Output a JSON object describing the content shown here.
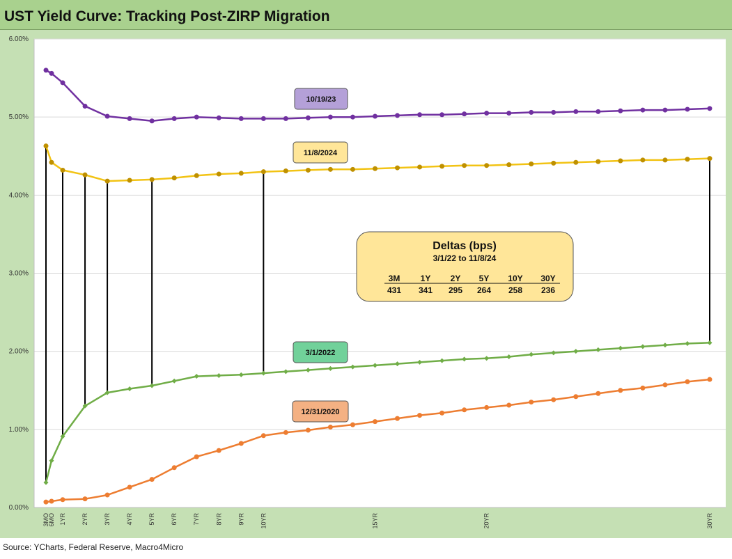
{
  "title": "UST Yield Curve: Tracking Post-ZIRP Migration",
  "source": "Source: YCharts, Federal Reserve, Macro4Micro",
  "chart_data": {
    "type": "line",
    "title": "UST Yield Curve: Tracking Post-ZIRP Migration",
    "ylim": [
      0,
      6
    ],
    "y_ticks": [
      "0.00%",
      "1.00%",
      "2.00%",
      "3.00%",
      "4.00%",
      "5.00%",
      "6.00%"
    ],
    "grid": true,
    "x_labels": [
      "3MO",
      "6MO",
      "1YR",
      "2YR",
      "3YR",
      "4YR",
      "5YR",
      "6YR",
      "7YR",
      "8YR",
      "9YR",
      "10YR",
      "",
      "",
      "",
      "",
      "15YR",
      "",
      "",
      "",
      "",
      "20YR",
      "",
      "",
      "",
      "",
      "",
      "",
      "",
      "",
      "",
      "30YR"
    ],
    "x_positions": [
      0.25,
      0.5,
      1,
      2,
      3,
      4,
      5,
      6,
      7,
      8,
      9,
      10,
      11,
      12,
      13,
      14,
      15,
      16,
      17,
      18,
      19,
      20,
      21,
      22,
      23,
      24,
      25,
      26,
      27,
      28,
      29,
      30
    ],
    "series": [
      {
        "name": "10/19/23",
        "color": "#7030a0",
        "label_bg": "#b4a0d8",
        "values": [
          5.6,
          5.56,
          5.44,
          5.14,
          5.01,
          4.98,
          4.95,
          4.98,
          5.0,
          4.99,
          4.98,
          4.98,
          4.98,
          4.99,
          5.0,
          5.0,
          5.01,
          5.02,
          5.03,
          5.03,
          5.04,
          5.05,
          5.05,
          5.06,
          5.06,
          5.07,
          5.07,
          5.08,
          5.09,
          5.09,
          5.1,
          5.11
        ]
      },
      {
        "name": "11/8/2024",
        "color": "#f2c314",
        "marker": "#bf9000",
        "label_bg": "#ffe699",
        "values": [
          4.63,
          4.42,
          4.32,
          4.26,
          4.18,
          4.19,
          4.2,
          4.22,
          4.25,
          4.27,
          4.28,
          4.3,
          4.31,
          4.32,
          4.33,
          4.33,
          4.34,
          4.35,
          4.36,
          4.37,
          4.38,
          4.38,
          4.39,
          4.4,
          4.41,
          4.42,
          4.43,
          4.44,
          4.45,
          4.45,
          4.46,
          4.47
        ]
      },
      {
        "name": "3/1/2022",
        "color": "#70ad47",
        "label_bg": "#71d19a",
        "values": [
          0.32,
          0.6,
          0.91,
          1.3,
          1.47,
          1.52,
          1.56,
          1.62,
          1.68,
          1.69,
          1.7,
          1.72,
          1.74,
          1.76,
          1.78,
          1.8,
          1.82,
          1.84,
          1.86,
          1.88,
          1.9,
          1.91,
          1.93,
          1.96,
          1.98,
          2.0,
          2.02,
          2.04,
          2.06,
          2.08,
          2.1,
          2.11
        ]
      },
      {
        "name": "12/31/2020",
        "color": "#ed7d31",
        "label_bg": "#f4b183",
        "values": [
          0.07,
          0.08,
          0.1,
          0.11,
          0.16,
          0.26,
          0.36,
          0.51,
          0.65,
          0.73,
          0.82,
          0.92,
          0.96,
          0.99,
          1.03,
          1.06,
          1.1,
          1.14,
          1.18,
          1.21,
          1.25,
          1.28,
          1.31,
          1.35,
          1.38,
          1.42,
          1.46,
          1.5,
          1.53,
          1.57,
          1.61,
          1.64
        ]
      }
    ],
    "delta_lines": [
      {
        "x": 0.25,
        "from": 0.32,
        "to": 4.63
      },
      {
        "x": 1,
        "from": 0.91,
        "to": 4.32
      },
      {
        "x": 2,
        "from": 1.3,
        "to": 4.26
      },
      {
        "x": 3,
        "from": 1.47,
        "to": 4.18
      },
      {
        "x": 5,
        "from": 1.56,
        "to": 4.2
      },
      {
        "x": 10,
        "from": 1.72,
        "to": 4.3
      },
      {
        "x": 30,
        "from": 2.11,
        "to": 4.47
      }
    ]
  },
  "deltas_box": {
    "title": "Deltas (bps)",
    "subtitle": "3/1/22  to 11/8/24",
    "headers": [
      "3M",
      "1Y",
      "2Y",
      "5Y",
      "10Y",
      "30Y"
    ],
    "values": [
      "431",
      "341",
      "295",
      "264",
      "258",
      "236"
    ],
    "bg": "#ffe699"
  }
}
